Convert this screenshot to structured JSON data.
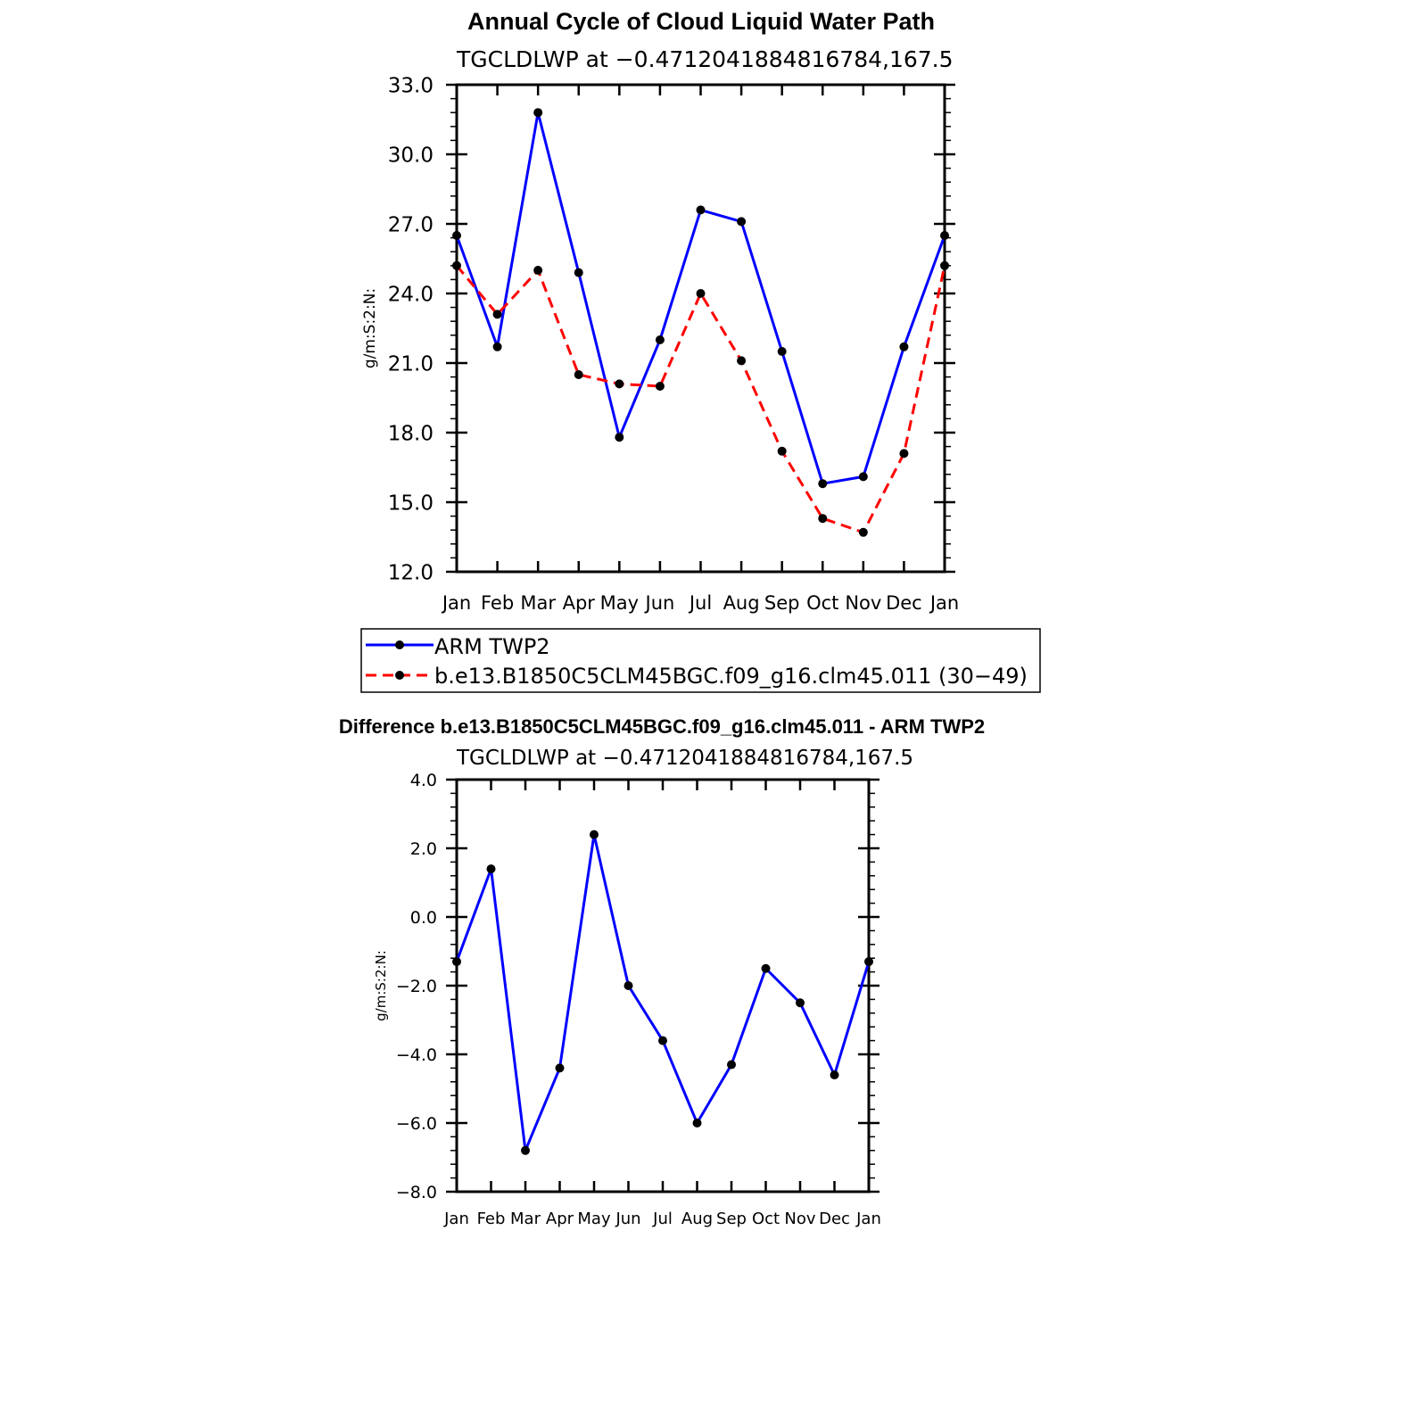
{
  "chart_data": [
    {
      "type": "line",
      "title": "Annual Cycle of Cloud Liquid Water Path",
      "subtitle": "TGCLDLWP at −0.4712041884816784,167.5",
      "ylabel": "g/m:S:2:N:",
      "ylim": [
        12.0,
        33.0
      ],
      "yticks": [
        "12.0",
        "15.0",
        "18.0",
        "21.0",
        "24.0",
        "27.0",
        "30.0",
        "33.0"
      ],
      "categories": [
        "Jan",
        "Feb",
        "Mar",
        "Apr",
        "May",
        "Jun",
        "Jul",
        "Aug",
        "Sep",
        "Oct",
        "Nov",
        "Dec",
        "Jan"
      ],
      "series": [
        {
          "name": "ARM TWP2",
          "color": "#0000ff",
          "dash": "solid",
          "values": [
            26.5,
            21.7,
            31.8,
            24.9,
            17.8,
            22.0,
            27.6,
            27.1,
            21.5,
            15.8,
            16.1,
            21.7,
            26.5
          ]
        },
        {
          "name": "b.e13.B1850C5CLM45BGC.f09_g16.clm45.011 (30−49)",
          "color": "#ff0000",
          "dash": "dashed",
          "values": [
            25.2,
            23.1,
            25.0,
            20.5,
            20.1,
            20.0,
            24.0,
            21.1,
            17.2,
            14.3,
            13.7,
            17.1,
            25.2
          ]
        }
      ],
      "legend": "below"
    },
    {
      "type": "line",
      "title": "Difference b.e13.B1850C5CLM45BGC.f09_g16.clm45.011 - ARM TWP2",
      "subtitle": "TGCLDLWP at −0.4712041884816784,167.5",
      "ylabel": "g/m:S:2:N:",
      "ylim": [
        -8.0,
        4.0
      ],
      "yticks": [
        "−8.0",
        "−6.0",
        "−4.0",
        "−2.0",
        "0.0",
        "2.0",
        "4.0"
      ],
      "categories": [
        "Jan",
        "Feb",
        "Mar",
        "Apr",
        "May",
        "Jun",
        "Jul",
        "Aug",
        "Sep",
        "Oct",
        "Nov",
        "Dec",
        "Jan"
      ],
      "series": [
        {
          "name": "",
          "color": "#0000ff",
          "dash": "solid",
          "values": [
            -1.3,
            1.4,
            -6.8,
            -4.4,
            2.4,
            -2.0,
            -3.6,
            -6.0,
            -4.3,
            -1.5,
            -2.5,
            -4.6,
            -1.3
          ]
        }
      ]
    }
  ]
}
